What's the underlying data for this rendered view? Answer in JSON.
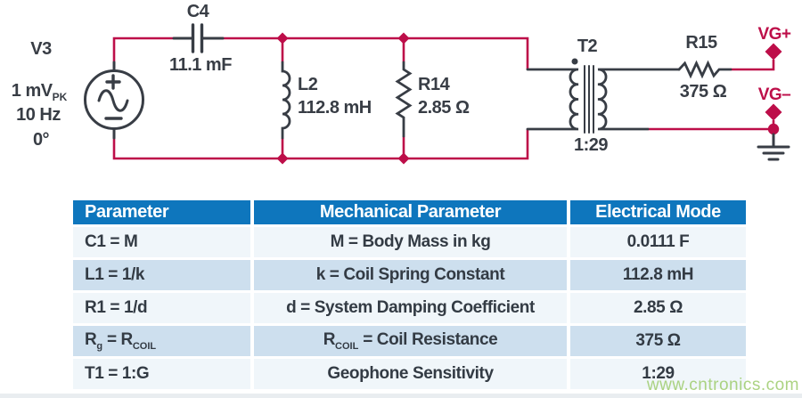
{
  "colors": {
    "wire_crimson": "#bd0e49",
    "component_dark": "#383d45",
    "table_header_bg": "#0e76bd",
    "table_row_light": "#f0f6fa",
    "table_row_blue": "#cddfee",
    "table_text": "#333b44",
    "watermark_green": "#9ecb6c"
  },
  "circuit": {
    "source": {
      "name": "V3",
      "amplitude": "1 mV",
      "amplitude_sub": "PK",
      "frequency": "10 Hz",
      "phase": "0°"
    },
    "c4": {
      "name": "C4",
      "value": "11.1 mF"
    },
    "l2": {
      "name": "L2",
      "value": "112.8 mH"
    },
    "r14": {
      "name": "R14",
      "value": "2.85 Ω"
    },
    "t2": {
      "name": "T2",
      "ratio": "1:29"
    },
    "r15": {
      "name": "R15",
      "value": "375 Ω"
    },
    "vg_plus": "VG+",
    "vg_minus": "VG–"
  },
  "table": {
    "headers": [
      "Parameter",
      "Mechanical Parameter",
      "Electrical Mode"
    ],
    "rows": [
      [
        [
          {
            "t": "C1 = M"
          }
        ],
        [
          {
            "t": "M = Body Mass in kg"
          }
        ],
        [
          {
            "t": "0.0111 F"
          }
        ]
      ],
      [
        [
          {
            "t": "L1 = 1/k"
          }
        ],
        [
          {
            "t": "k = Coil Spring Constant"
          }
        ],
        [
          {
            "t": "112.8 mH"
          }
        ]
      ],
      [
        [
          {
            "t": "R1 = 1/d"
          }
        ],
        [
          {
            "t": "d = System Damping Coefficient"
          }
        ],
        [
          {
            "t": "2.85 Ω"
          }
        ]
      ],
      [
        [
          {
            "t": "R"
          },
          {
            "t": "g",
            "sub": true
          },
          {
            "t": " = R"
          },
          {
            "t": "COIL",
            "sub": true
          }
        ],
        [
          {
            "t": "R"
          },
          {
            "t": "COIL",
            "sub": true
          },
          {
            "t": " = Coil Resistance"
          }
        ],
        [
          {
            "t": "375 Ω"
          }
        ]
      ],
      [
        [
          {
            "t": "T1 = 1:G"
          }
        ],
        [
          {
            "t": "Geophone Sensitivity"
          }
        ],
        [
          {
            "t": "1:29"
          }
        ]
      ]
    ]
  },
  "watermark": "www.cntronics.com"
}
